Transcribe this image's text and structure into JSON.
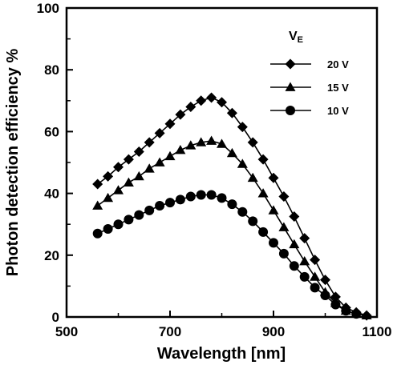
{
  "chart_data": {
    "type": "line",
    "xlabel": "Wavelength [nm]",
    "ylabel": "Photon detection efficiency %",
    "xlim": [
      500,
      1100
    ],
    "ylim": [
      0,
      100
    ],
    "xticks": [
      500,
      700,
      900,
      1100
    ],
    "yticks": [
      0,
      20,
      40,
      60,
      80,
      100
    ],
    "grid": false,
    "legend": {
      "title": "VE",
      "title_main": "V",
      "title_sub": "E",
      "placement": "top-right"
    },
    "series": [
      {
        "name": "20 V",
        "marker": "diamond",
        "x": [
          560,
          580,
          600,
          620,
          640,
          660,
          680,
          700,
          720,
          740,
          760,
          780,
          800,
          820,
          840,
          860,
          880,
          900,
          920,
          940,
          960,
          980,
          1000,
          1020,
          1040,
          1060,
          1080
        ],
        "y": [
          43,
          45.5,
          48.5,
          51,
          53.5,
          56.5,
          59.5,
          62.5,
          65.5,
          68,
          70,
          71,
          69.5,
          66,
          61.5,
          56.5,
          51,
          45,
          39,
          32.5,
          25.5,
          18.5,
          12,
          6.5,
          3,
          1.5,
          0.5
        ]
      },
      {
        "name": "15 V",
        "marker": "triangle",
        "x": [
          560,
          580,
          600,
          620,
          640,
          660,
          680,
          700,
          720,
          740,
          760,
          780,
          800,
          820,
          840,
          860,
          880,
          900,
          920,
          940,
          960,
          980,
          1000,
          1020,
          1040,
          1060,
          1080
        ],
        "y": [
          36,
          38.5,
          41,
          43.5,
          45.5,
          48,
          50,
          52,
          54,
          55.5,
          56.5,
          57,
          56,
          53,
          49.5,
          45,
          40,
          34.5,
          29,
          23.5,
          18,
          13,
          8,
          4.5,
          2,
          1,
          0.5
        ]
      },
      {
        "name": "10 V",
        "marker": "circle",
        "x": [
          560,
          580,
          600,
          620,
          640,
          660,
          680,
          700,
          720,
          740,
          760,
          780,
          800,
          820,
          840,
          860,
          880,
          900,
          920,
          940,
          960,
          980,
          1000,
          1020,
          1040,
          1060
        ],
        "y": [
          27,
          28.5,
          30,
          31.5,
          33,
          34.5,
          36,
          37,
          38,
          39,
          39.5,
          39.5,
          38.5,
          36.5,
          34,
          31,
          27.5,
          24,
          20.5,
          16.5,
          13,
          9.5,
          7,
          4,
          2,
          1
        ]
      }
    ]
  }
}
